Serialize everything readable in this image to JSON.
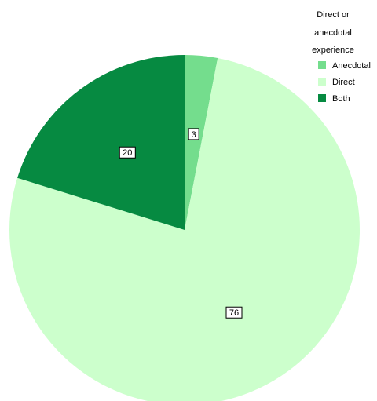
{
  "chart_data": {
    "type": "pie",
    "legend": {
      "title_lines": [
        "Direct or",
        "anecdotal",
        "experience"
      ],
      "placement": "top-right"
    },
    "slices": [
      {
        "name": "Anecdotal",
        "value": 3,
        "label": "3",
        "color": "#74dd8d"
      },
      {
        "name": "Direct",
        "value": 76,
        "label": "76",
        "color": "#ccffcc"
      },
      {
        "name": "Both",
        "value": 20,
        "label": "20",
        "color": "#068a41"
      }
    ],
    "start_angle_deg": 0,
    "direction": "clockwise"
  }
}
